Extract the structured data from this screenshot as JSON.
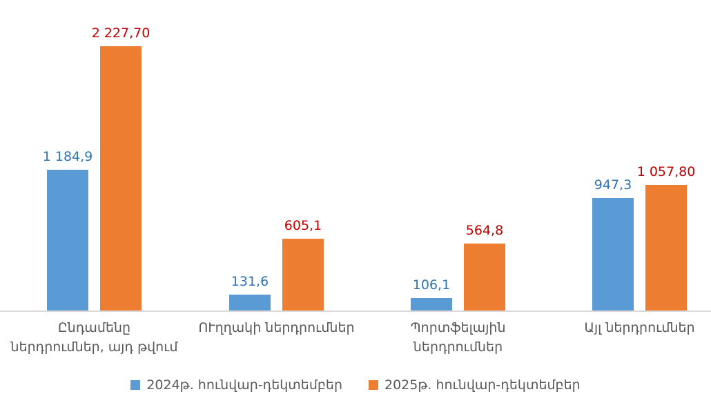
{
  "colors": {
    "series_2024": "#5B9BD5",
    "series_2025": "#ED7D31",
    "value_label_2024": "#2E75B6",
    "value_label_2025": "#C00000",
    "axis_text": "#595959",
    "axis_line": "#D9D9D9",
    "background": "#FFFFFF"
  },
  "chart_data": {
    "type": "bar",
    "categories": [
      "Ընդամենը ներդրումներ, այդ թվում",
      "ՈՒղղակի ներդրումներ",
      "Պորտֆելային ներդրումներ",
      "Այլ ներդրումներ"
    ],
    "category_lines": [
      [
        "Ընդամենը",
        "ներդրումներ, այդ թվում"
      ],
      [
        "ՈՒղղակի ներդրումներ"
      ],
      [
        "Պորտֆելային",
        "ներդրումներ"
      ],
      [
        "Այլ ներդրումներ"
      ]
    ],
    "series": [
      {
        "name": "2024թ. հունվար-դեկտեմբեր",
        "color": "#5B9BD5",
        "label_color": "#2E75B6",
        "values": [
          1184.9,
          131.6,
          106.1,
          947.3
        ],
        "value_labels": [
          "1 184,9",
          "131,6",
          "106,1",
          "947,3"
        ]
      },
      {
        "name": "2025թ. հունվար-դեկտեմբեր",
        "color": "#ED7D31",
        "label_color": "#C00000",
        "values": [
          2227.7,
          605.1,
          564.8,
          1057.8
        ],
        "value_labels": [
          "2 227,70",
          "605,1",
          "564,8",
          "1 057,80"
        ]
      }
    ],
    "ylim": [
      0,
      2400
    ],
    "grid": false,
    "legend_position": "bottom",
    "xlabel": "",
    "ylabel": ""
  }
}
